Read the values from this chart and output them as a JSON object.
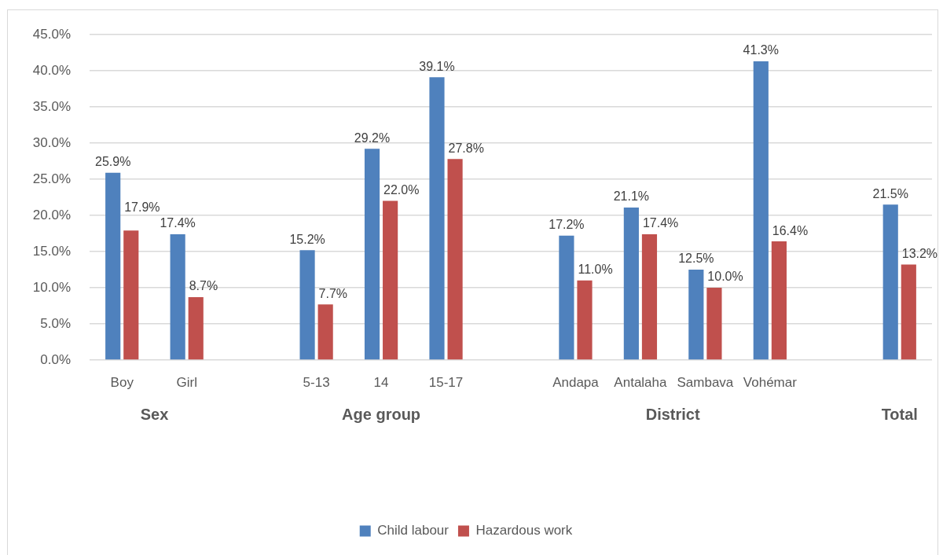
{
  "chart_data": {
    "type": "bar",
    "categories": [
      "Boy",
      "Girl",
      null,
      "5-13",
      "14",
      "15-17",
      null,
      "Andapa",
      "Antalaha",
      "Sambava",
      "Vohémar",
      null,
      null
    ],
    "series": [
      {
        "name": "Child labour",
        "color": "#4f81bd",
        "values": [
          25.9,
          17.4,
          null,
          15.2,
          29.2,
          39.1,
          null,
          17.2,
          21.1,
          12.5,
          41.3,
          null,
          21.5
        ],
        "value_labels": [
          "25.9%",
          "17.4%",
          null,
          "15.2%",
          "29.2%",
          "39.1%",
          null,
          "17.2%",
          "21.1%",
          "12.5%",
          "41.3%",
          null,
          "21.5%"
        ]
      },
      {
        "name": "Hazardous work",
        "color": "#c0504d",
        "values": [
          17.9,
          8.7,
          null,
          7.7,
          22.0,
          27.8,
          null,
          11.0,
          17.4,
          10.0,
          16.4,
          null,
          13.2
        ],
        "value_labels": [
          "17.9%",
          "8.7%",
          null,
          "7.7%",
          "22.0%",
          "27.8%",
          null,
          "11.0%",
          "17.4%",
          "10.0%",
          "16.4%",
          null,
          "13.2%"
        ]
      }
    ],
    "ylim": [
      0,
      45
    ],
    "yticks": [
      {
        "value": 0,
        "label": "0.0%"
      },
      {
        "value": 5,
        "label": "5.0%"
      },
      {
        "value": 10,
        "label": "10.0%"
      },
      {
        "value": 15,
        "label": "15.0%"
      },
      {
        "value": 20,
        "label": "20.0%"
      },
      {
        "value": 25,
        "label": "25.0%"
      },
      {
        "value": 30,
        "label": "30.0%"
      },
      {
        "value": 35,
        "label": "35.0%"
      },
      {
        "value": 40,
        "label": "40.0%"
      },
      {
        "value": 45,
        "label": "45.0%"
      }
    ],
    "annotations": [
      "Sex",
      "Age group",
      "District",
      "Total"
    ],
    "grid": "y",
    "legend": "bottom"
  }
}
